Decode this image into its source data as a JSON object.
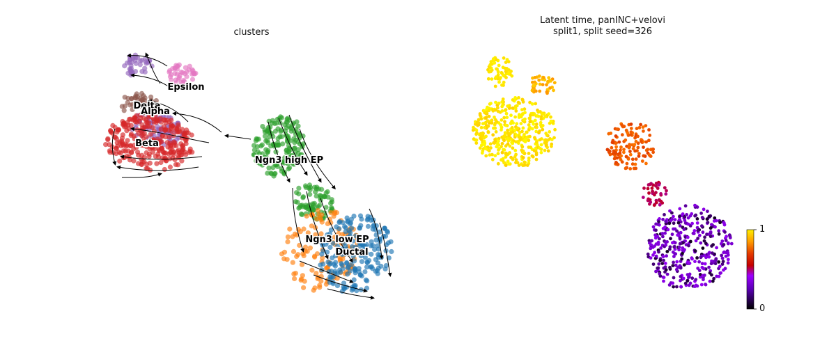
{
  "panels": [
    {
      "title_line1": "clusters",
      "title_line2": ""
    },
    {
      "title_line1": "Latent time, panINC+velovi",
      "title_line2": "split1, split seed=326"
    }
  ],
  "chart_data": [
    {
      "type": "scatter",
      "subtype": "umap-embedding-with-velocity-stream",
      "title": "clusters",
      "xlabel": "",
      "ylabel": "",
      "axes_visible": false,
      "grid": false,
      "clusters": [
        {
          "name": "Epsilon",
          "color": "#e377c2"
        },
        {
          "name": "Delta",
          "color": "#8c564b"
        },
        {
          "name": "Alpha",
          "color": "#9467bd"
        },
        {
          "name": "Beta",
          "color": "#d62728"
        },
        {
          "name": "Ngn3 high EP",
          "color": "#2ca02c"
        },
        {
          "name": "Ngn3 low EP",
          "color": "#ff7f0e"
        },
        {
          "name": "Ductal",
          "color": "#1f77b4"
        }
      ],
      "labels_on_data": true,
      "streamlines": true
    },
    {
      "type": "scatter",
      "subtype": "umap-embedding-colored-by-continuous-value",
      "title": "Latent time, panINC+velovi split1, split seed=326",
      "colormap": "gnuplot",
      "colormap_stops": [
        "#000000",
        "#7400c8",
        "#9c00ff",
        "#c40000",
        "#ff7a00",
        "#ffd400",
        "#ffff00"
      ],
      "clim": [
        0,
        1
      ],
      "colorbar_ticks": [
        "1",
        "0"
      ],
      "axes_visible": false,
      "grid": false
    }
  ]
}
